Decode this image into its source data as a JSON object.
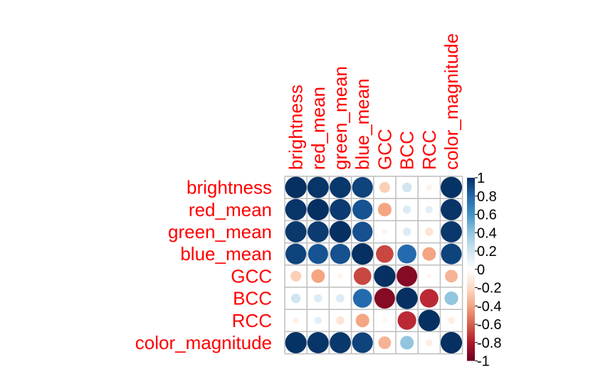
{
  "chart_data": {
    "type": "heatmap",
    "variables": [
      "brightness",
      "red_mean",
      "green_mean",
      "blue_mean",
      "GCC",
      "BCC",
      "RCC",
      "color_magnitude"
    ],
    "matrix": [
      [
        1.0,
        0.98,
        0.97,
        0.93,
        -0.25,
        0.2,
        -0.08,
        0.99
      ],
      [
        0.98,
        1.0,
        0.96,
        0.87,
        -0.4,
        0.15,
        0.12,
        0.98
      ],
      [
        0.97,
        0.96,
        1.0,
        0.88,
        -0.06,
        0.15,
        -0.15,
        0.97
      ],
      [
        0.93,
        0.87,
        0.88,
        1.0,
        -0.67,
        0.78,
        -0.4,
        0.93
      ],
      [
        -0.25,
        -0.4,
        -0.06,
        -0.67,
        1.0,
        -0.92,
        -0.05,
        -0.35
      ],
      [
        0.2,
        0.15,
        0.15,
        0.78,
        -0.92,
        1.0,
        -0.75,
        0.4
      ],
      [
        -0.08,
        0.12,
        -0.15,
        -0.4,
        -0.05,
        -0.75,
        1.0,
        -0.1
      ],
      [
        0.99,
        0.98,
        0.97,
        0.93,
        -0.35,
        0.4,
        -0.1,
        1.0
      ]
    ],
    "colorbar": {
      "ticks": [
        "-1",
        "-0.8",
        "-0.6",
        "-0.4",
        "-0.2",
        "0",
        "0.2",
        "0.4",
        "0.6",
        "0.8",
        "1"
      ],
      "range": [
        -1,
        1
      ]
    },
    "colors": {
      "label": "#ff0000",
      "grid": "#bebebe",
      "scale": [
        "#67001f",
        "#b2182b",
        "#d6604d",
        "#f4a582",
        "#fddbc7",
        "#ffffff",
        "#d1e5f0",
        "#92c5de",
        "#4393c3",
        "#2166ac",
        "#053061"
      ]
    }
  }
}
